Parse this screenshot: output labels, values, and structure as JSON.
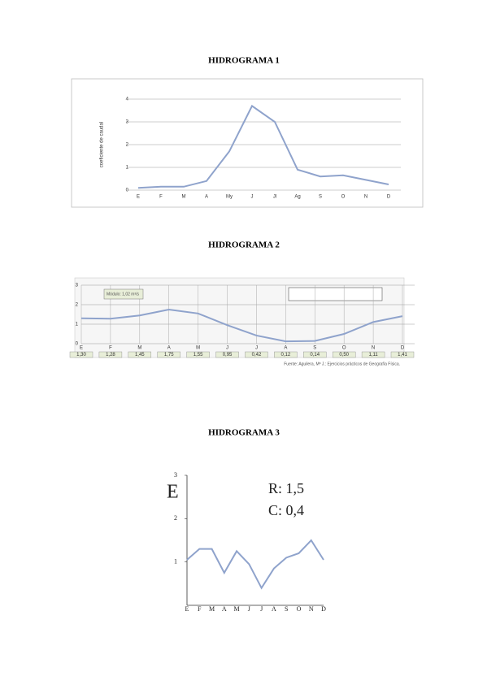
{
  "chart_data": [
    {
      "type": "line",
      "title": "HIDROGRAMA 1",
      "y_label": "coeficiente de caudal",
      "categories": [
        "E",
        "F",
        "M",
        "A",
        "My",
        "J",
        "Jl",
        "Ag",
        "S",
        "O",
        "N",
        "D"
      ],
      "values": [
        0.1,
        0.15,
        0.15,
        0.4,
        1.7,
        3.7,
        3.0,
        0.9,
        0.6,
        0.65,
        0.45,
        0.25
      ],
      "color": "#8fa3cc",
      "ylim": [
        0,
        4
      ],
      "yticks": [
        0,
        1,
        2,
        3,
        4
      ],
      "grid": true
    },
    {
      "type": "line",
      "title": "HIDROGRAMA 2",
      "categories": [
        "E",
        "F",
        "M",
        "A",
        "M",
        "J",
        "J",
        "A",
        "S",
        "O",
        "N",
        "D"
      ],
      "values": [
        1.3,
        1.28,
        1.45,
        1.75,
        1.55,
        0.95,
        0.42,
        0.12,
        0.14,
        0.5,
        1.11,
        1.41
      ],
      "value_labels": [
        "1,30",
        "1,28",
        "1,45",
        "1,75",
        "1,55",
        "0,95",
        "0,42",
        "0,12",
        "0,14",
        "0,50",
        "1,11",
        "1,41"
      ],
      "legend_text": "Módulo: 1,02 m³/s",
      "source": "Fuente: Aguilera, Mª J.: Ejercicios prácticos de Geografía Física.",
      "color": "#8fa3cc",
      "ylim": [
        0,
        3
      ],
      "yticks": [
        0,
        1,
        2,
        3
      ],
      "grid": true
    },
    {
      "type": "line",
      "title": "HIDROGRAMA 3",
      "annotations": [
        "E",
        "R: 1,5",
        "C: 0,4"
      ],
      "categories": [
        "E",
        "F",
        "M",
        "A",
        "M",
        "J",
        "J",
        "A",
        "S",
        "O",
        "N",
        "D"
      ],
      "values": [
        1.05,
        1.3,
        1.3,
        0.75,
        1.25,
        0.95,
        0.4,
        0.85,
        1.1,
        1.2,
        1.5,
        1.05
      ],
      "color": "#8fa3cc",
      "ylim": [
        0,
        3
      ],
      "yticks": [
        1,
        2,
        3
      ],
      "grid": false
    }
  ]
}
